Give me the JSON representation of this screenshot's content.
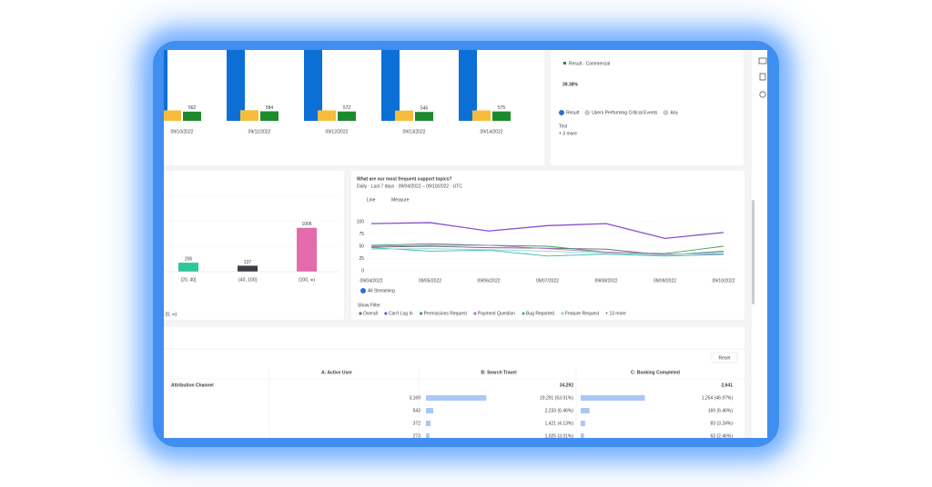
{
  "top_bar_chart": {
    "type": "bar",
    "categories": [
      "09/10/2022",
      "09/11/2022",
      "09/12/2022",
      "09/13/2022",
      "09/14/2022"
    ],
    "series": [
      {
        "color": "#0b6fd6",
        "values": [
          6000,
          6000,
          6000,
          6000,
          6000
        ]
      },
      {
        "color": "#f6bd3c",
        "values": [
          640,
          650,
          640,
          630,
          640
        ]
      },
      {
        "color": "#1e8a2e",
        "values": [
          562,
          584,
          572,
          546,
          575
        ]
      }
    ]
  },
  "metric_card": {
    "legend": "Result - Commercial",
    "legend_color": "#1e8a2e",
    "value": "39.38%",
    "chips": [
      "Result",
      "Users Performing Critical Events",
      "Any"
    ],
    "filter": "Test",
    "more": "+ 3 more"
  },
  "histogram_card": {
    "type": "bar",
    "categories": [
      "(20, 40]",
      "(40, 100]",
      "(100, ∞)"
    ],
    "values": [
      206,
      137,
      1005
    ],
    "colors": [
      "#2cc79a",
      "#3b3f45",
      "#e46aab"
    ],
    "footer": "[0, ∞)"
  },
  "line_card": {
    "type": "line",
    "title": "What are our most frequent support topics?",
    "subtitle": "Daily · Last 7 days · 09/04/2022 – 09/10/2022 · UTC",
    "controls": [
      "Line",
      "Measure"
    ],
    "x": [
      "09/04/2022",
      "09/05/2022",
      "09/06/2022",
      "09/07/2022",
      "09/08/2022",
      "09/09/2022",
      "09/10/2022"
    ],
    "ylim": [
      0,
      100
    ],
    "yticks": [
      0,
      25,
      50,
      75,
      100
    ],
    "grid": true,
    "segment": "All Streaming",
    "filter_label": "Show Filter",
    "series": [
      {
        "name": "Overall",
        "color": "#6b6f76",
        "values": [
          48,
          50,
          47,
          46,
          44,
          32,
          40
        ]
      },
      {
        "name": "Can't Log In",
        "color": "#8a4fd1",
        "values": [
          96,
          98,
          81,
          92,
          96,
          66,
          78
        ]
      },
      {
        "name": "Permissions Request",
        "color": "#37a35a",
        "values": [
          52,
          55,
          52,
          50,
          38,
          35,
          50
        ]
      },
      {
        "name": "Payment Question",
        "color": "#c86ad8",
        "values": [
          50,
          52,
          52,
          45,
          38,
          34,
          35
        ]
      },
      {
        "name": "Bug Reported",
        "color": "#3ab5b0",
        "values": [
          47,
          40,
          42,
          30,
          34,
          30,
          33
        ]
      },
      {
        "name": "Feature Request",
        "color": "#8fd6c8",
        "values": [
          44,
          45,
          43,
          40,
          36,
          32,
          38
        ]
      }
    ],
    "more": "+ 13 more"
  },
  "table": {
    "reset": "Reset",
    "row_header": "Attribution Channel",
    "columns": [
      "A: Active User",
      "B: Search Travel",
      "C: Booking Completed"
    ],
    "totals": [
      "34,292",
      "2,641"
    ],
    "rows": [
      {
        "a": "3,169",
        "b": "19,291 (53.01%)",
        "b_share": 53.01,
        "c": "1,254 (46.97%)",
        "c_share": 46.97
      },
      {
        "a": "543",
        "b": "2,233 (6.46%)",
        "b_share": 6.46,
        "c": "169 (6.46%)",
        "c_share": 6.46
      },
      {
        "a": "372",
        "b": "1,421 (4.13%)",
        "b_share": 4.13,
        "c": "83 (3.24%)",
        "c_share": 3.24
      },
      {
        "a": "273",
        "b": "1,025 (3.01%)",
        "b_share": 3.01,
        "c": "63 (2.46%)",
        "c_share": 2.46
      }
    ]
  }
}
